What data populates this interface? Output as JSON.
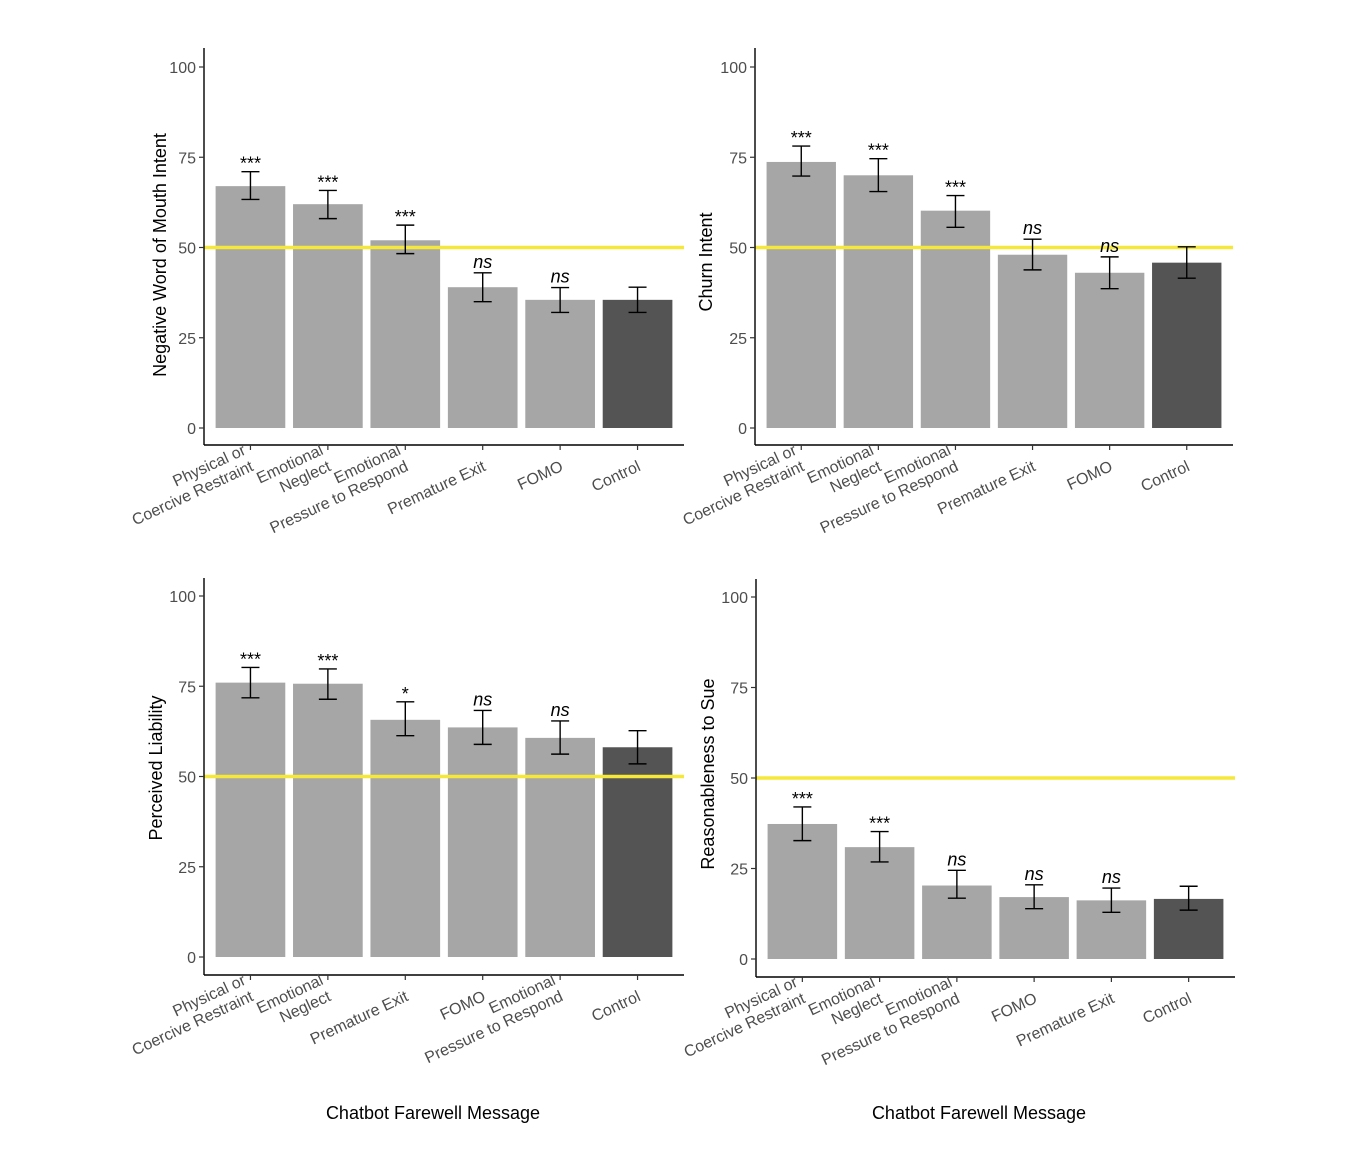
{
  "figure": {
    "xlabel": "Chatbot Farewell Message"
  },
  "colors": {
    "bar": "#a6a6a6",
    "control_bar": "#545454",
    "reference_line": "#f5e83a",
    "axis": "#000000",
    "error_bar": "#000000"
  },
  "chart_data": [
    {
      "type": "bar",
      "ylabel": "Negative Word of Mouth Intent",
      "xlabel": "",
      "ylim": [
        0,
        100
      ],
      "yticks": [
        0,
        25,
        50,
        75,
        100
      ],
      "reference_line": 50,
      "categories": [
        [
          "Physical or",
          "Coercive Restraint"
        ],
        [
          "Emotional",
          "Neglect"
        ],
        [
          "Emotional",
          "Pressure to Respond"
        ],
        [
          "Premature Exit"
        ],
        [
          "FOMO"
        ],
        [
          "Control"
        ]
      ],
      "values": [
        67,
        62,
        52,
        39,
        35.5,
        35.5
      ],
      "error_low": [
        63.3,
        58,
        48.3,
        35,
        32,
        32
      ],
      "error_high": [
        71,
        65.8,
        56.2,
        43,
        38.9,
        39
      ],
      "significance": [
        "***",
        "***",
        "***",
        "ns",
        "ns",
        ""
      ],
      "control_index": 5
    },
    {
      "type": "bar",
      "ylabel": "Churn Intent",
      "xlabel": "",
      "ylim": [
        0,
        100
      ],
      "yticks": [
        0,
        25,
        50,
        75,
        100
      ],
      "reference_line": 50,
      "categories": [
        [
          "Physical or",
          "Coercive Restraint"
        ],
        [
          "Emotional",
          "Neglect"
        ],
        [
          "Emotional",
          "Pressure to Respond"
        ],
        [
          "Premature Exit"
        ],
        [
          "FOMO"
        ],
        [
          "Control"
        ]
      ],
      "values": [
        73.7,
        70,
        60.2,
        48,
        43,
        45.8
      ],
      "error_low": [
        69.8,
        65.5,
        55.6,
        43.8,
        38.6,
        41.5
      ],
      "error_high": [
        78.1,
        74.6,
        64.4,
        52.3,
        47.4,
        50.2
      ],
      "significance": [
        "***",
        "***",
        "***",
        "ns",
        "ns",
        ""
      ],
      "control_index": 5
    },
    {
      "type": "bar",
      "ylabel": "Perceived Liability",
      "xlabel": "Chatbot Farewell Message",
      "ylim": [
        0,
        100
      ],
      "yticks": [
        0,
        25,
        50,
        75,
        100
      ],
      "reference_line": 50,
      "categories": [
        [
          "Physical or",
          "Coercive Restraint"
        ],
        [
          "Emotional",
          "Neglect"
        ],
        [
          "Premature Exit"
        ],
        [
          "FOMO"
        ],
        [
          "Emotional",
          "Pressure to Respond"
        ],
        [
          "Control"
        ]
      ],
      "values": [
        76,
        75.7,
        65.7,
        63.6,
        60.7,
        58.1
      ],
      "error_low": [
        71.8,
        71.4,
        61.3,
        58.9,
        56.2,
        53.5
      ],
      "error_high": [
        80.2,
        79.8,
        70.7,
        68.3,
        65.4,
        62.7
      ],
      "significance": [
        "***",
        "***",
        "*",
        "ns",
        "ns",
        ""
      ],
      "control_index": 5
    },
    {
      "type": "bar",
      "ylabel": "Reasonableness to Sue",
      "xlabel": "Chatbot Farewell Message",
      "ylim": [
        0,
        100
      ],
      "yticks": [
        0,
        25,
        50,
        75,
        100
      ],
      "reference_line": 50,
      "categories": [
        [
          "Physical or",
          "Coercive Restraint"
        ],
        [
          "Emotional",
          "Neglect"
        ],
        [
          "Emotional",
          "Pressure to Respond"
        ],
        [
          "FOMO"
        ],
        [
          "Premature Exit"
        ],
        [
          "Control"
        ]
      ],
      "values": [
        37.3,
        30.9,
        20.3,
        17.1,
        16.2,
        16.6
      ],
      "error_low": [
        32.7,
        26.8,
        16.8,
        13.9,
        12.9,
        13.5
      ],
      "error_high": [
        42,
        35.2,
        24.5,
        20.5,
        19.6,
        20.1
      ],
      "significance": [
        "***",
        "***",
        "ns",
        "ns",
        "ns",
        ""
      ],
      "control_index": 5
    }
  ]
}
